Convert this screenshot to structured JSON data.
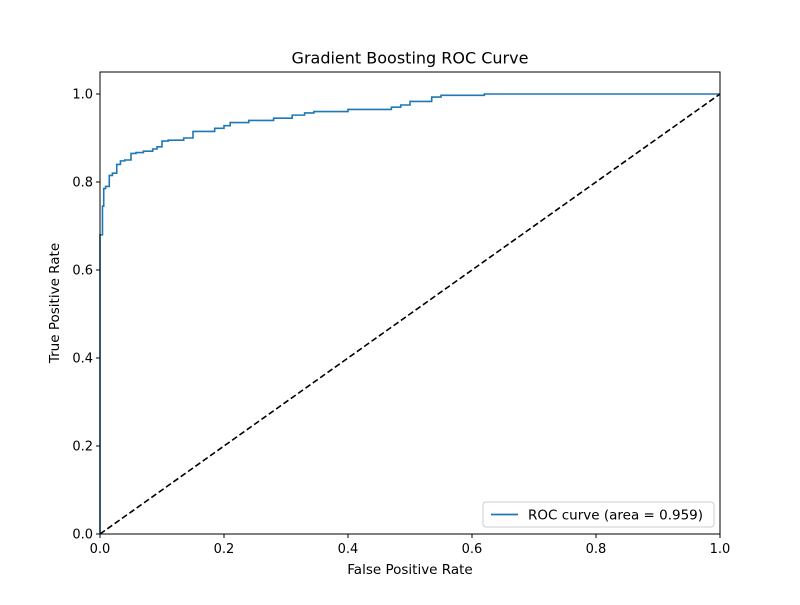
{
  "chart_data": {
    "type": "line",
    "title": "Gradient Boosting ROC Curve",
    "xlabel": "False Positive Rate",
    "ylabel": "True Positive Rate",
    "xlim": [
      0.0,
      1.0
    ],
    "ylim": [
      0.0,
      1.05
    ],
    "x_ticks": [
      "0.0",
      "0.2",
      "0.4",
      "0.6",
      "0.8",
      "1.0"
    ],
    "y_ticks": [
      "0.0",
      "0.2",
      "0.4",
      "0.6",
      "0.8",
      "1.0"
    ],
    "grid": false,
    "legend_position": "lower-right",
    "series": [
      {
        "name": "ROC curve (area = 0.959)",
        "color": "#1f77b4",
        "style": "solid",
        "x": [
          0.0,
          0.0,
          0.0,
          0.004,
          0.004,
          0.006,
          0.006,
          0.009,
          0.009,
          0.015,
          0.015,
          0.02,
          0.02,
          0.027,
          0.027,
          0.033,
          0.033,
          0.04,
          0.04,
          0.05,
          0.05,
          0.058,
          0.058,
          0.07,
          0.07,
          0.085,
          0.085,
          0.092,
          0.092,
          0.1,
          0.1,
          0.11,
          0.11,
          0.135,
          0.135,
          0.15,
          0.15,
          0.185,
          0.185,
          0.2,
          0.2,
          0.21,
          0.21,
          0.24,
          0.24,
          0.28,
          0.28,
          0.31,
          0.31,
          0.33,
          0.33,
          0.345,
          0.345,
          0.4,
          0.4,
          0.47,
          0.47,
          0.485,
          0.485,
          0.5,
          0.5,
          0.535,
          0.535,
          0.55,
          0.55,
          0.62,
          0.62,
          1.0
        ],
        "y": [
          0.0,
          0.585,
          0.68,
          0.68,
          0.745,
          0.745,
          0.785,
          0.785,
          0.79,
          0.79,
          0.815,
          0.815,
          0.82,
          0.82,
          0.84,
          0.84,
          0.848,
          0.848,
          0.85,
          0.85,
          0.865,
          0.865,
          0.867,
          0.867,
          0.87,
          0.87,
          0.875,
          0.875,
          0.88,
          0.88,
          0.893,
          0.893,
          0.895,
          0.895,
          0.9,
          0.9,
          0.915,
          0.915,
          0.922,
          0.922,
          0.928,
          0.928,
          0.935,
          0.935,
          0.94,
          0.94,
          0.945,
          0.945,
          0.952,
          0.952,
          0.957,
          0.957,
          0.96,
          0.96,
          0.965,
          0.965,
          0.97,
          0.97,
          0.975,
          0.975,
          0.983,
          0.983,
          0.993,
          0.993,
          0.997,
          0.997,
          1.0,
          1.0
        ]
      },
      {
        "color": "#000000",
        "style": "dashed",
        "x": [
          0.0,
          1.0
        ],
        "y": [
          0.0,
          1.0
        ]
      }
    ]
  }
}
